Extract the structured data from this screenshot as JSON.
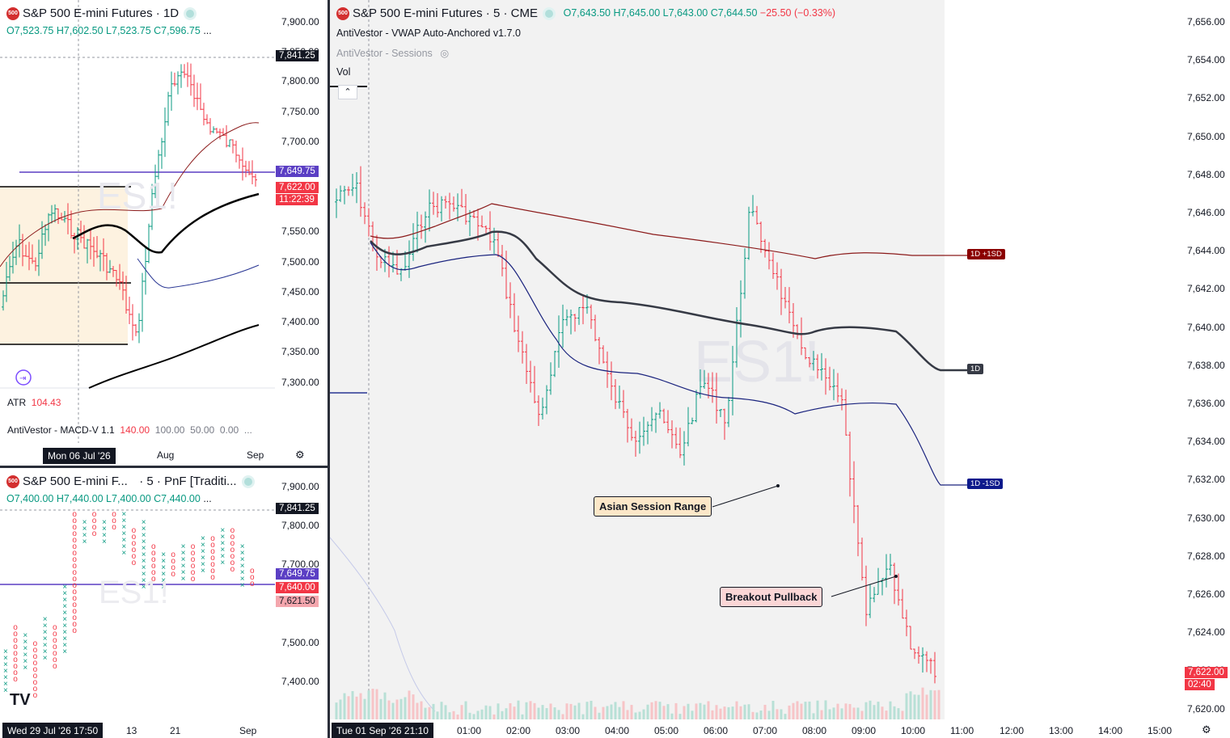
{
  "daily": {
    "symbol_badge": "500",
    "title": "S&P 500 E-mini Futures · 1D",
    "ohlc": {
      "o": "O7,523.75",
      "h": "H7,602.50",
      "l": "L7,523.75",
      "c": "C7,596.75",
      "more": "..."
    },
    "watermark": "ES1!",
    "y_ticks": [
      "7,900.00",
      "7,850.00",
      "7,800.00",
      "7,750.00",
      "7,700.00",
      "7,550.00",
      "7,500.00",
      "7,450.00",
      "7,400.00",
      "7,350.00",
      "7,300.00"
    ],
    "price_tags": {
      "high": "7,841.25",
      "level": "7,649.75",
      "last": "7,622.00",
      "countdown": "11:22:39"
    },
    "atr_label": "ATR",
    "atr_value": "104.43",
    "macd_label": "AntiVestor - MACD-V 1.1",
    "macd_values": [
      "140.00",
      "100.00",
      "50.00",
      "0.00",
      "..."
    ],
    "x_labels": [
      "Aug",
      "Sep"
    ],
    "date_cursor": "Mon 06 Jul '26"
  },
  "pnf": {
    "symbol_badge": "500",
    "title": "S&P 500 E-mini F...",
    "title_suffix": "· 5 · PnF [Traditi...",
    "ohlc": {
      "o": "O7,400.00",
      "h": "H7,440.00",
      "l": "L7,400.00",
      "c": "C7,440.00",
      "more": "..."
    },
    "watermark": "ES1!",
    "y_ticks": [
      "7,900.00",
      "7,800.00",
      "7,700.00",
      "7,500.00",
      "7,400.00"
    ],
    "price_tags": {
      "high": "7,841.25",
      "level": "7,649.75",
      "last": "7,640.00",
      "prev": "7,621.50"
    },
    "x_labels": [
      "13",
      "21",
      "Sep"
    ],
    "date_cursor": "Wed 29 Jul '26   17:50",
    "logo": "TV"
  },
  "main": {
    "symbol_badge": "500",
    "title": "S&P 500 E-mini Futures · 5 · CME",
    "ohlc": {
      "o": "O7,643.50",
      "h": "H7,645.00",
      "l": "L7,643.00",
      "c": "C7,644.50",
      "chg": "−25.50 (−0.33%)"
    },
    "indicator1": "AntiVestor - VWAP Auto-Anchored v1.7.0",
    "indicator2": "AntiVestor - Sessions",
    "indicator3": "Vol",
    "watermark": "ES1!",
    "y_ticks": [
      "7,656.00",
      "7,654.00",
      "7,652.00",
      "7,650.00",
      "7,648.00",
      "7,646.00",
      "7,644.00",
      "7,642.00",
      "7,640.00",
      "7,638.00",
      "7,636.00",
      "7,634.00",
      "7,632.00",
      "7,630.00",
      "7,628.00",
      "7,626.00",
      "7,624.00",
      "7,622.00",
      "7,620.00"
    ],
    "x_labels": [
      "01:00",
      "02:00",
      "03:00",
      "04:00",
      "05:00",
      "06:00",
      "07:00",
      "08:00",
      "09:00",
      "10:00",
      "11:00",
      "12:00",
      "13:00",
      "14:00",
      "15:00"
    ],
    "date_cursor": "Tue 01 Sep '26   21:10",
    "vwap_tags": {
      "upper": "1D +1SD",
      "mid": "1D",
      "lower": "1D -1SD"
    },
    "last_price": "7,622.00",
    "countdown": "02:40",
    "callout1": "Asian Session Range",
    "callout2": "Breakout Pullback"
  },
  "colors": {
    "up": "#089981",
    "down": "#f23645",
    "vwap_mid": "#363a45",
    "vwap_upper": "#8b1a1a",
    "vwap_lower": "#1a237e",
    "level": "#5b3fc4",
    "session_bg": "#f2f2f2"
  }
}
